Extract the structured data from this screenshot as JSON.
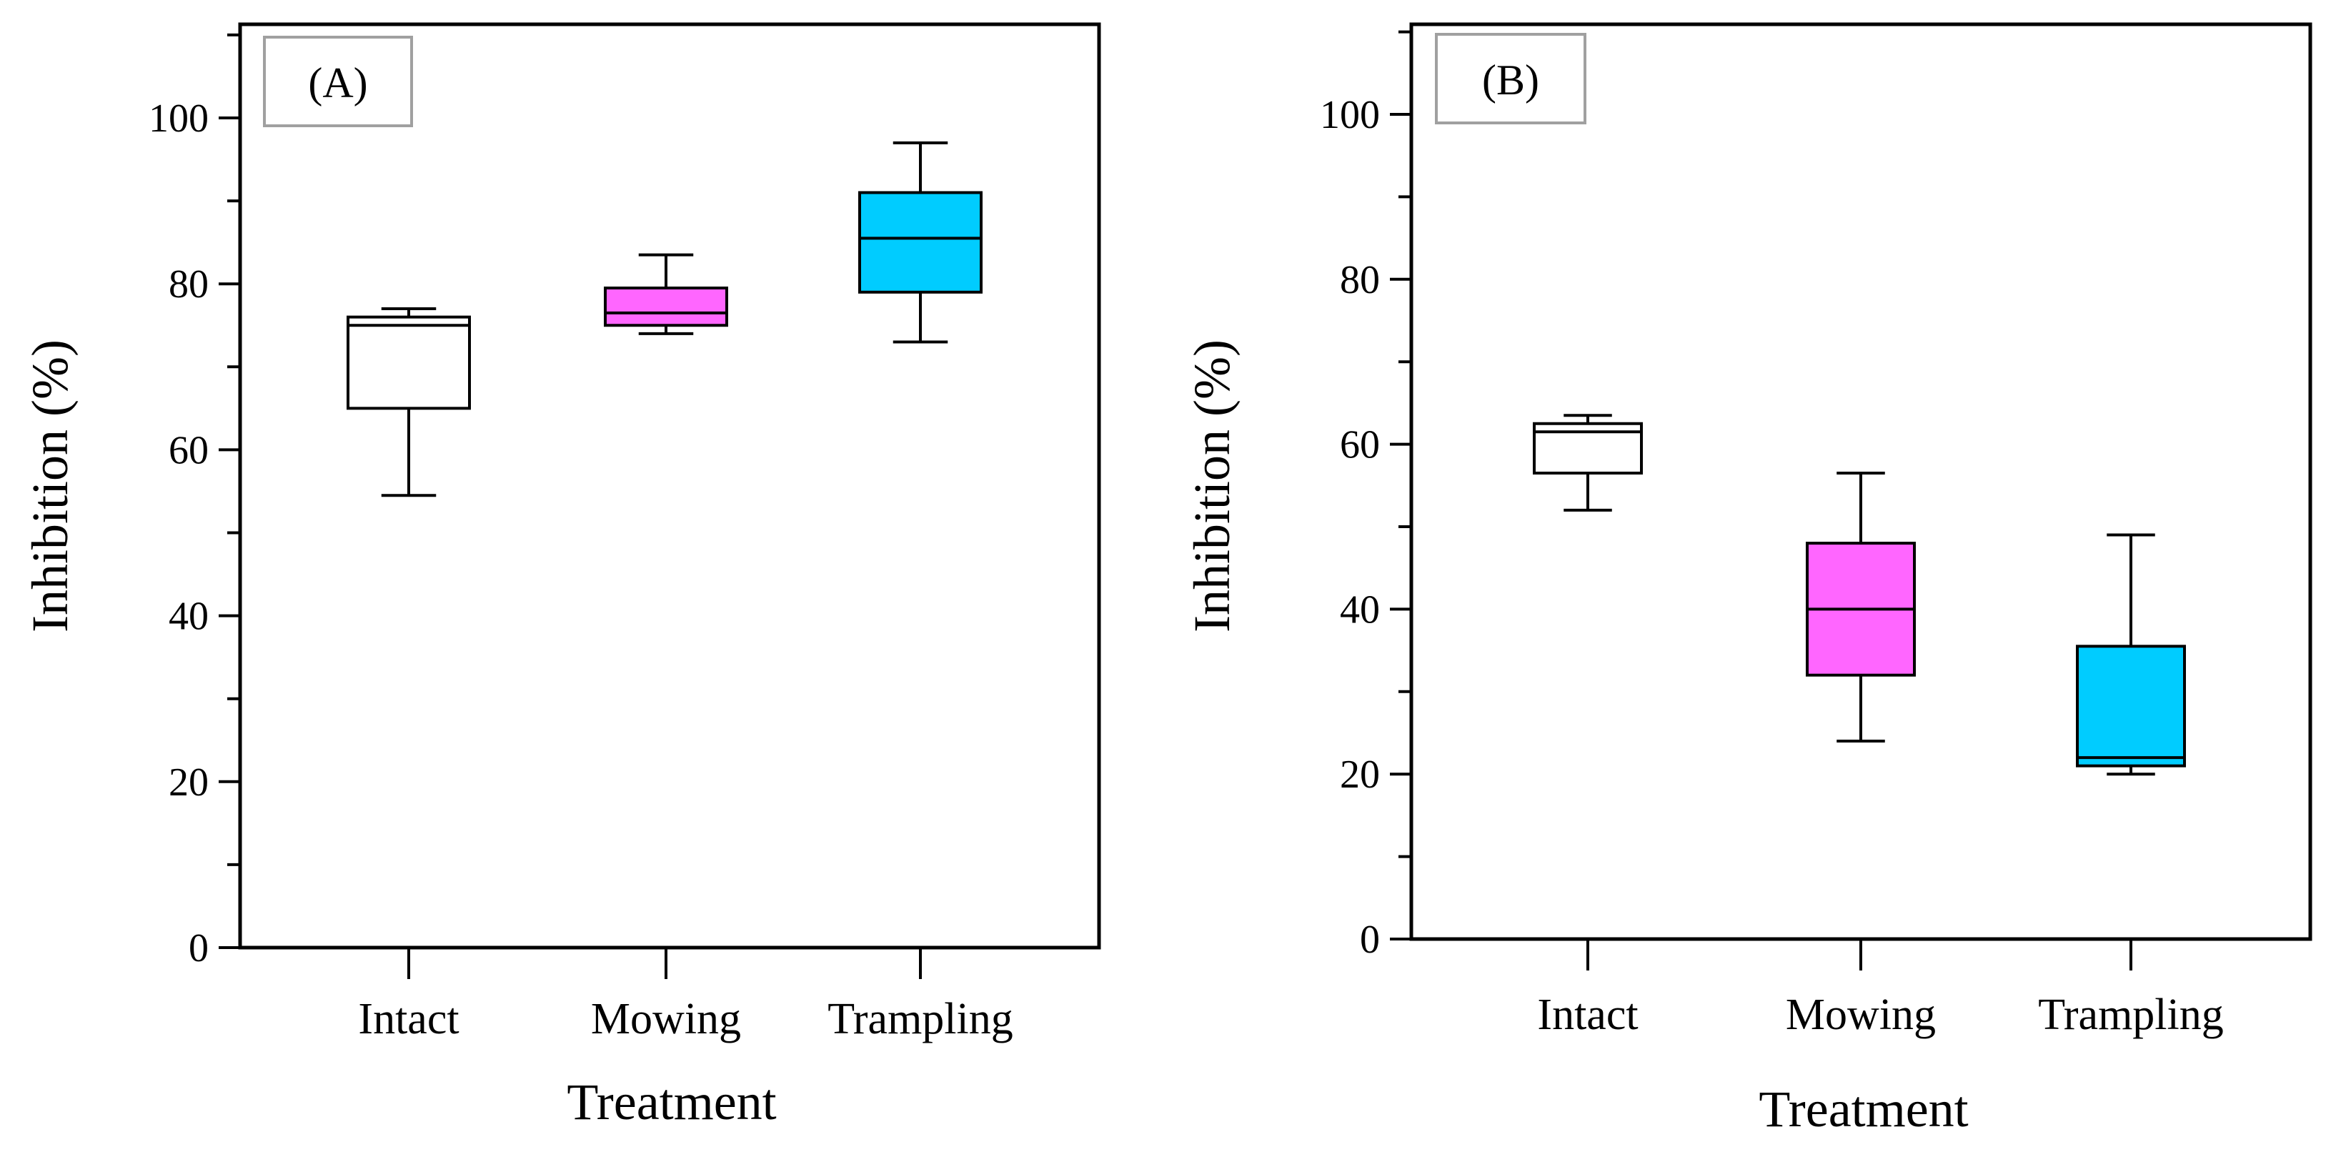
{
  "chart_data": [
    {
      "type": "box",
      "panel_label": "(A)",
      "xlabel": "Treatment",
      "ylabel": "Inhibition (%)",
      "ylim": [
        0,
        110
      ],
      "yticks": [
        0,
        20,
        40,
        60,
        80,
        100
      ],
      "categories": [
        "Intact",
        "Mowing",
        "Trampling"
      ],
      "boxes": [
        {
          "category": "Intact",
          "min": 54.5,
          "q1": 65.0,
          "median": 75.0,
          "q3": 76.0,
          "max": 77.0,
          "color": "#ffffff"
        },
        {
          "category": "Mowing",
          "min": 74.0,
          "q1": 75.0,
          "median": 76.5,
          "q3": 79.5,
          "max": 83.5,
          "color": "#ff66ff"
        },
        {
          "category": "Trampling",
          "min": 73.0,
          "q1": 79.0,
          "median": 85.5,
          "q3": 91.0,
          "max": 97.0,
          "color": "#00ccff"
        }
      ]
    },
    {
      "type": "box",
      "panel_label": "(B)",
      "xlabel": "Treatment",
      "ylabel": "Inhibition (%)",
      "ylim": [
        0,
        110
      ],
      "yticks": [
        0,
        20,
        40,
        60,
        80,
        100
      ],
      "categories": [
        "Intact",
        "Mowing",
        "Trampling"
      ],
      "boxes": [
        {
          "category": "Intact",
          "min": 52.0,
          "q1": 56.5,
          "median": 61.5,
          "q3": 62.5,
          "max": 63.5,
          "color": "#ffffff"
        },
        {
          "category": "Mowing",
          "min": 24.0,
          "q1": 32.0,
          "median": 40.0,
          "q3": 48.0,
          "max": 56.5,
          "color": "#ff66ff"
        },
        {
          "category": "Trampling",
          "min": 20.0,
          "q1": 21.0,
          "median": 22.0,
          "q3": 35.5,
          "max": 49.0,
          "color": "#00ccff"
        }
      ]
    }
  ]
}
